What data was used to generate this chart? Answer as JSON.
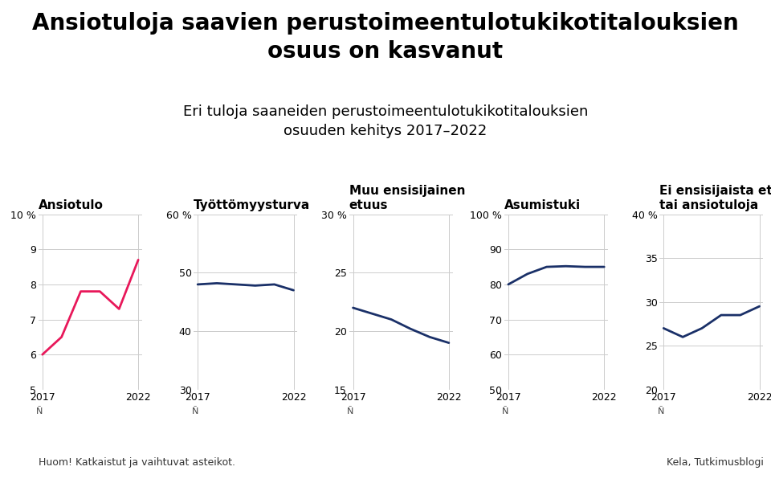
{
  "title": "Ansiotuloja saavien perustoimeentulotukikotitalouksien\nosuus on kasvanut",
  "subtitle": "Eri tuloja saaneiden perustoimeentulotukikotitalouksien\nosuuden kehitys 2017–2022",
  "panels": [
    {
      "label": "Ansiotulo",
      "years": [
        2017,
        2018,
        2019,
        2020,
        2021,
        2022
      ],
      "values": [
        6.0,
        6.5,
        7.8,
        7.8,
        7.3,
        8.7
      ],
      "color": "#e8185a",
      "ylim": [
        5,
        10
      ],
      "yticks": [
        5,
        6,
        7,
        8,
        9,
        10
      ],
      "top_label": "10 %"
    },
    {
      "label": "Työttömyysturva",
      "years": [
        2017,
        2018,
        2019,
        2020,
        2021,
        2022
      ],
      "values": [
        48.0,
        48.2,
        48.0,
        47.8,
        48.0,
        47.0
      ],
      "color": "#1a3068",
      "ylim": [
        30,
        60
      ],
      "yticks": [
        30,
        40,
        50,
        60
      ],
      "top_label": "60 %"
    },
    {
      "label": "Muu ensisijainen\netuus",
      "years": [
        2017,
        2018,
        2019,
        2020,
        2021,
        2022
      ],
      "values": [
        22.0,
        21.5,
        21.0,
        20.2,
        19.5,
        19.0
      ],
      "color": "#1a3068",
      "ylim": [
        15,
        30
      ],
      "yticks": [
        15,
        20,
        25,
        30
      ],
      "top_label": "30 %"
    },
    {
      "label": "Asumistuki",
      "years": [
        2017,
        2018,
        2019,
        2020,
        2021,
        2022
      ],
      "values": [
        80.0,
        83.0,
        85.0,
        85.2,
        85.0,
        85.0
      ],
      "color": "#1a3068",
      "ylim": [
        50,
        100
      ],
      "yticks": [
        50,
        60,
        70,
        80,
        90,
        100
      ],
      "top_label": "100 %"
    },
    {
      "label": "Ei ensisijaista etuutta\ntai ansiotuloja",
      "years": [
        2017,
        2018,
        2019,
        2020,
        2021,
        2022
      ],
      "values": [
        27.0,
        26.0,
        27.0,
        28.5,
        28.5,
        29.5
      ],
      "color": "#1a3068",
      "ylim": [
        20,
        40
      ],
      "yticks": [
        20,
        25,
        30,
        35,
        40
      ],
      "top_label": "40 %"
    }
  ],
  "footnote_left": "Huom! Katkaistut ja vaihtuvat asteikot.",
  "footnote_right": "Kela, Tutkimusblogi",
  "background_color": "#ffffff",
  "grid_color": "#cccccc",
  "title_fontsize": 20,
  "subtitle_fontsize": 13,
  "label_fontsize": 11,
  "tick_fontsize": 9
}
